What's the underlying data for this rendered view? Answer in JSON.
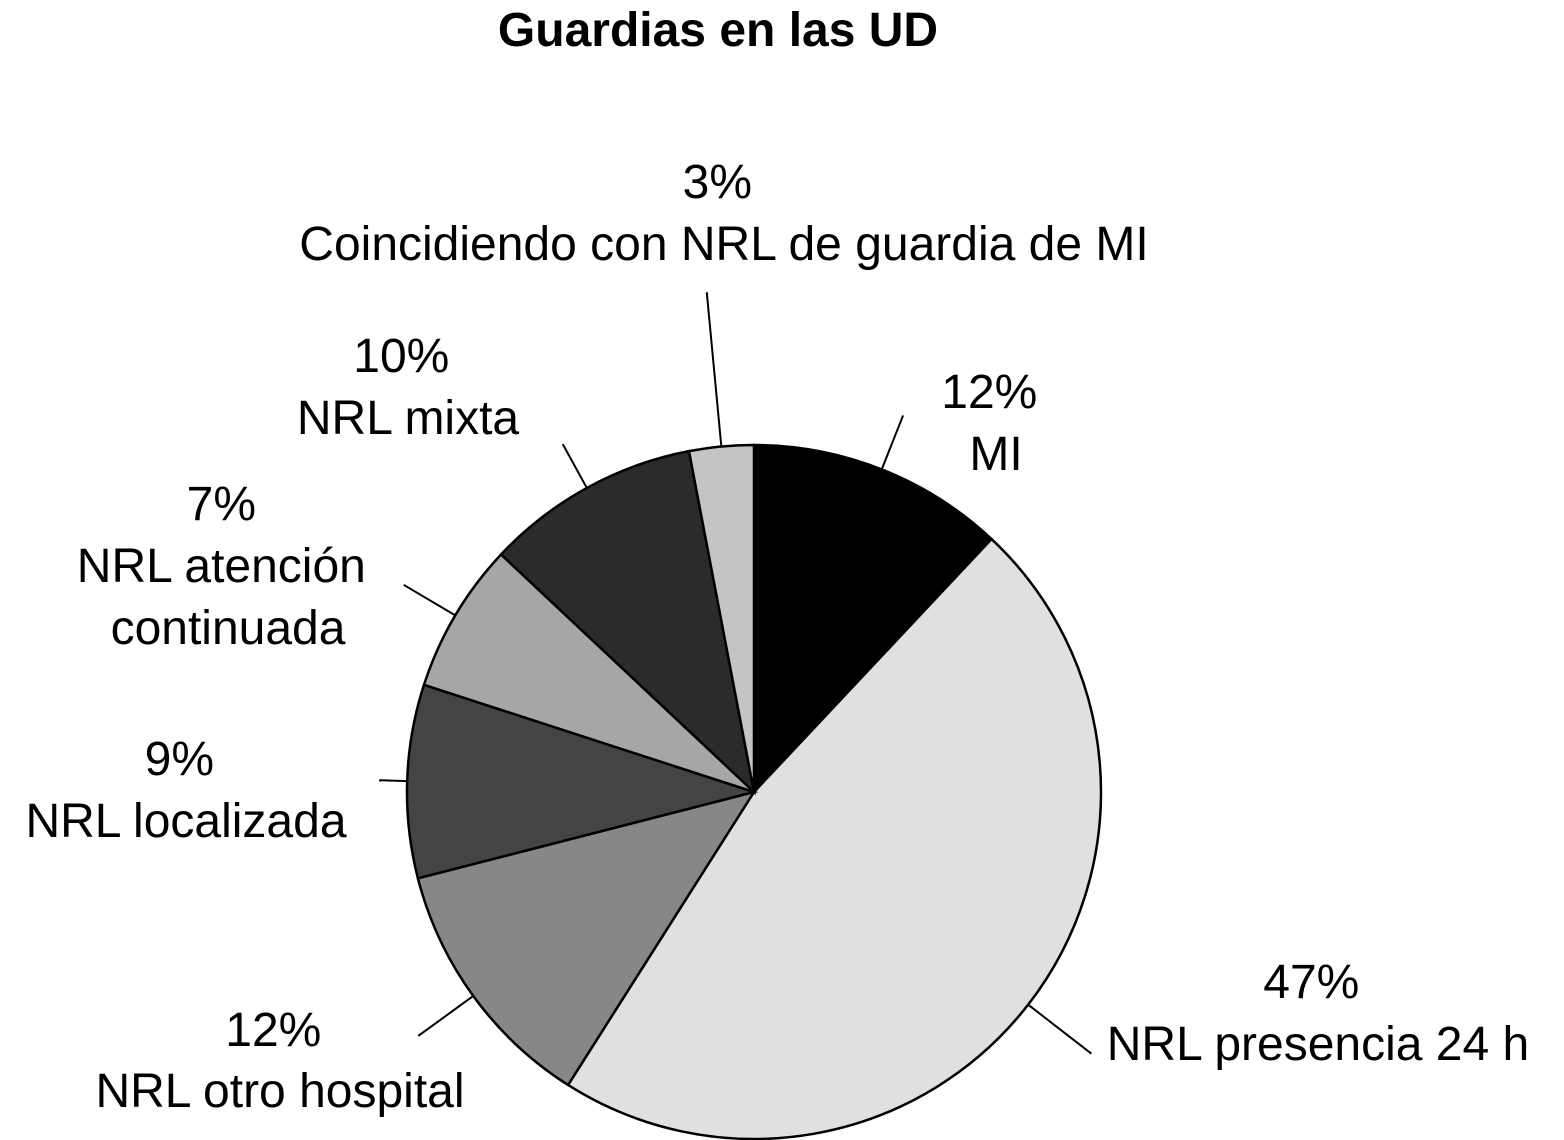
{
  "chart_data": {
    "type": "pie",
    "title": "Guardias en las UD",
    "slices": [
      {
        "label": "MI",
        "value": 12,
        "value_label": "12%",
        "color": "#000000"
      },
      {
        "label": "NRL presencia 24 h",
        "value": 47,
        "value_label": "47%",
        "color": "#e0e0e0"
      },
      {
        "label": "NRL otro hospital",
        "value": 12,
        "value_label": "12%",
        "color": "#878787"
      },
      {
        "label": "NRL localizada",
        "value": 9,
        "value_label": "9%",
        "color": "#444444"
      },
      {
        "label": "NRL atención continuada",
        "value": 7,
        "value_label": "7%",
        "color": "#a6a6a6"
      },
      {
        "label": "NRL mixta",
        "value": 10,
        "value_label": "10%",
        "color": "#2b2b2b"
      },
      {
        "label": "Coincidiendo con NRL de guardia de MI",
        "value": 3,
        "value_label": "3%",
        "color": "#c4c4c4"
      }
    ],
    "legend": "none"
  }
}
